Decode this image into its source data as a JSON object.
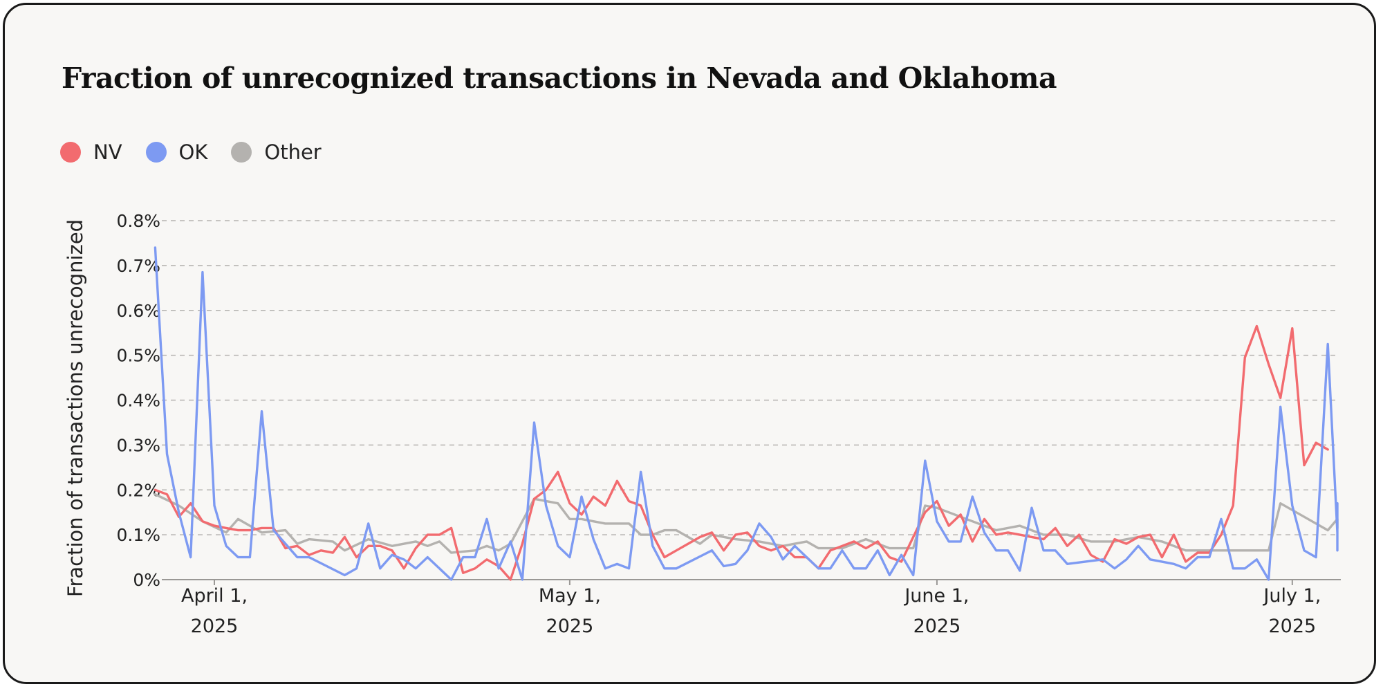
{
  "title": "Fraction of unrecognized transactions in Nevada and Oklahoma",
  "colors": {
    "NV": "#f26b6f",
    "OK": "#7d9af2",
    "Other": "#b4b2af",
    "grid": "#b5b3b0",
    "axis": "#9a9895",
    "text": "#222222"
  },
  "legend": [
    {
      "name": "NV",
      "color": "#f26b6f"
    },
    {
      "name": "OK",
      "color": "#7d9af2"
    },
    {
      "name": "Other",
      "color": "#b4b2af"
    }
  ],
  "chart_data": {
    "type": "line",
    "title": "Fraction of unrecognized transactions in Nevada and Oklahoma",
    "ylabel": "Fraction of transactions unrecognized",
    "xlabel": "",
    "ylim": [
      0,
      0.8
    ],
    "y_unit": "%",
    "yticks": [
      0,
      0.1,
      0.2,
      0.3,
      0.4,
      0.5,
      0.6,
      0.7,
      0.8
    ],
    "ytick_labels": [
      "0%",
      "0.1%",
      "0.2%",
      "0.3%",
      "0.4%",
      "0.5%",
      "0.6%",
      "0.7%",
      "0.8%"
    ],
    "x_start": "2025-03-27",
    "x_end": "2025-07-05",
    "xticks": [
      {
        "date": "2025-04-01",
        "label": [
          "April 1,",
          "2025"
        ]
      },
      {
        "date": "2025-05-01",
        "label": [
          "May 1,",
          "2025"
        ]
      },
      {
        "date": "2025-06-01",
        "label": [
          "June 1,",
          "2025"
        ]
      },
      {
        "date": "2025-07-01",
        "label": [
          "July 1,",
          "2025"
        ]
      }
    ],
    "grid": true,
    "legend_position": "top-left",
    "series": [
      {
        "name": "NV",
        "color": "#f26b6f",
        "points": [
          [
            "2025-03-27",
            0.2
          ],
          [
            "2025-03-28",
            0.19
          ],
          [
            "2025-03-29",
            0.14
          ],
          [
            "2025-03-30",
            0.17
          ],
          [
            "2025-03-31",
            0.13
          ],
          [
            "2025-04-01",
            0.12
          ],
          [
            "2025-04-02",
            0.115
          ],
          [
            "2025-04-03",
            0.11
          ],
          [
            "2025-04-04",
            0.11
          ],
          [
            "2025-04-05",
            0.115
          ],
          [
            "2025-04-06",
            0.115
          ],
          [
            "2025-04-07",
            0.07
          ],
          [
            "2025-04-08",
            0.075
          ],
          [
            "2025-04-09",
            0.055
          ],
          [
            "2025-04-10",
            0.065
          ],
          [
            "2025-04-11",
            0.06
          ],
          [
            "2025-04-12",
            0.095
          ],
          [
            "2025-04-13",
            0.05
          ],
          [
            "2025-04-14",
            0.075
          ],
          [
            "2025-04-15",
            0.075
          ],
          [
            "2025-04-16",
            0.065
          ],
          [
            "2025-04-17",
            0.025
          ],
          [
            "2025-04-18",
            0.07
          ],
          [
            "2025-04-19",
            0.1
          ],
          [
            "2025-04-20",
            0.1
          ],
          [
            "2025-04-21",
            0.115
          ],
          [
            "2025-04-22",
            0.015
          ],
          [
            "2025-04-23",
            0.025
          ],
          [
            "2025-04-24",
            0.045
          ],
          [
            "2025-04-25",
            0.03
          ],
          [
            "2025-04-26",
            0.0
          ],
          [
            "2025-04-27",
            0.08
          ],
          [
            "2025-04-28",
            0.18
          ],
          [
            "2025-04-29",
            0.2
          ],
          [
            "2025-04-30",
            0.24
          ],
          [
            "2025-05-01",
            0.17
          ],
          [
            "2025-05-02",
            0.145
          ],
          [
            "2025-05-03",
            0.185
          ],
          [
            "2025-05-04",
            0.165
          ],
          [
            "2025-05-05",
            0.22
          ],
          [
            "2025-05-06",
            0.175
          ],
          [
            "2025-05-07",
            0.165
          ],
          [
            "2025-05-08",
            0.1
          ],
          [
            "2025-05-09",
            0.05
          ],
          [
            "2025-05-10",
            0.065
          ],
          [
            "2025-05-11",
            0.08
          ],
          [
            "2025-05-12",
            0.095
          ],
          [
            "2025-05-13",
            0.105
          ],
          [
            "2025-05-14",
            0.065
          ],
          [
            "2025-05-15",
            0.1
          ],
          [
            "2025-05-16",
            0.105
          ],
          [
            "2025-05-17",
            0.075
          ],
          [
            "2025-05-18",
            0.065
          ],
          [
            "2025-05-19",
            0.075
          ],
          [
            "2025-05-20",
            0.05
          ],
          [
            "2025-05-21",
            0.05
          ],
          [
            "2025-05-22",
            0.025
          ],
          [
            "2025-05-23",
            0.065
          ],
          [
            "2025-05-24",
            0.075
          ],
          [
            "2025-05-25",
            0.085
          ],
          [
            "2025-05-26",
            0.07
          ],
          [
            "2025-05-27",
            0.085
          ],
          [
            "2025-05-28",
            0.05
          ],
          [
            "2025-05-29",
            0.04
          ],
          [
            "2025-05-30",
            0.095
          ],
          [
            "2025-05-31",
            0.15
          ],
          [
            "2025-06-01",
            0.175
          ],
          [
            "2025-06-02",
            0.12
          ],
          [
            "2025-06-03",
            0.145
          ],
          [
            "2025-06-04",
            0.085
          ],
          [
            "2025-06-05",
            0.135
          ],
          [
            "2025-06-06",
            0.1
          ],
          [
            "2025-06-07",
            0.105
          ],
          [
            "2025-06-08",
            0.1
          ],
          [
            "2025-06-09",
            0.095
          ],
          [
            "2025-06-10",
            0.09
          ],
          [
            "2025-06-11",
            0.115
          ],
          [
            "2025-06-12",
            0.075
          ],
          [
            "2025-06-13",
            0.1
          ],
          [
            "2025-06-14",
            0.055
          ],
          [
            "2025-06-15",
            0.04
          ],
          [
            "2025-06-16",
            0.09
          ],
          [
            "2025-06-17",
            0.08
          ],
          [
            "2025-06-18",
            0.095
          ],
          [
            "2025-06-19",
            0.1
          ],
          [
            "2025-06-20",
            0.05
          ],
          [
            "2025-06-21",
            0.1
          ],
          [
            "2025-06-22",
            0.04
          ],
          [
            "2025-06-23",
            0.06
          ],
          [
            "2025-06-24",
            0.06
          ],
          [
            "2025-06-25",
            0.1
          ],
          [
            "2025-06-26",
            0.165
          ],
          [
            "2025-06-27",
            0.495
          ],
          [
            "2025-06-28",
            0.565
          ],
          [
            "2025-06-29",
            0.48
          ],
          [
            "2025-06-30",
            0.405
          ],
          [
            "2025-07-01",
            0.56
          ],
          [
            "2025-07-02",
            0.255
          ],
          [
            "2025-07-03",
            0.305
          ],
          [
            "2025-07-04",
            0.29
          ]
        ]
      },
      {
        "name": "OK",
        "color": "#7d9af2",
        "points": [
          [
            "2025-03-27",
            0.74
          ],
          [
            "2025-03-28",
            0.28
          ],
          [
            "2025-03-29",
            0.15
          ],
          [
            "2025-03-30",
            0.05
          ],
          [
            "2025-03-31",
            0.685
          ],
          [
            "2025-04-01",
            0.165
          ],
          [
            "2025-04-02",
            0.075
          ],
          [
            "2025-04-03",
            0.05
          ],
          [
            "2025-04-04",
            0.05
          ],
          [
            "2025-04-05",
            0.375
          ],
          [
            "2025-04-06",
            0.11
          ],
          [
            "2025-04-07",
            0.08
          ],
          [
            "2025-04-08",
            0.05
          ],
          [
            "2025-04-09",
            0.05
          ],
          [
            "2025-04-12",
            0.01
          ],
          [
            "2025-04-13",
            0.025
          ],
          [
            "2025-04-14",
            0.125
          ],
          [
            "2025-04-15",
            0.025
          ],
          [
            "2025-04-16",
            0.055
          ],
          [
            "2025-04-17",
            0.045
          ],
          [
            "2025-04-18",
            0.025
          ],
          [
            "2025-04-19",
            0.05
          ],
          [
            "2025-04-21",
            0.0
          ],
          [
            "2025-04-22",
            0.05
          ],
          [
            "2025-04-23",
            0.05
          ],
          [
            "2025-04-24",
            0.135
          ],
          [
            "2025-04-25",
            0.025
          ],
          [
            "2025-04-26",
            0.085
          ],
          [
            "2025-04-27",
            0.0
          ],
          [
            "2025-04-28",
            0.35
          ],
          [
            "2025-04-29",
            0.165
          ],
          [
            "2025-04-30",
            0.075
          ],
          [
            "2025-05-01",
            0.05
          ],
          [
            "2025-05-02",
            0.185
          ],
          [
            "2025-05-03",
            0.09
          ],
          [
            "2025-05-04",
            0.025
          ],
          [
            "2025-05-05",
            0.035
          ],
          [
            "2025-05-06",
            0.025
          ],
          [
            "2025-05-07",
            0.24
          ],
          [
            "2025-05-08",
            0.075
          ],
          [
            "2025-05-09",
            0.025
          ],
          [
            "2025-05-10",
            0.025
          ],
          [
            "2025-05-13",
            0.065
          ],
          [
            "2025-05-14",
            0.03
          ],
          [
            "2025-05-15",
            0.035
          ],
          [
            "2025-05-16",
            0.065
          ],
          [
            "2025-05-17",
            0.125
          ],
          [
            "2025-05-18",
            0.095
          ],
          [
            "2025-05-19",
            0.045
          ],
          [
            "2025-05-20",
            0.075
          ],
          [
            "2025-05-21",
            0.05
          ],
          [
            "2025-05-22",
            0.025
          ],
          [
            "2025-05-23",
            0.025
          ],
          [
            "2025-05-24",
            0.065
          ],
          [
            "2025-05-25",
            0.025
          ],
          [
            "2025-05-26",
            0.025
          ],
          [
            "2025-05-27",
            0.065
          ],
          [
            "2025-05-28",
            0.01
          ],
          [
            "2025-05-29",
            0.055
          ],
          [
            "2025-05-30",
            0.01
          ],
          [
            "2025-05-31",
            0.265
          ],
          [
            "2025-06-01",
            0.13
          ],
          [
            "2025-06-02",
            0.085
          ],
          [
            "2025-06-03",
            0.085
          ],
          [
            "2025-06-04",
            0.185
          ],
          [
            "2025-06-05",
            0.105
          ],
          [
            "2025-06-06",
            0.065
          ],
          [
            "2025-06-07",
            0.065
          ],
          [
            "2025-06-08",
            0.02
          ],
          [
            "2025-06-09",
            0.16
          ],
          [
            "2025-06-10",
            0.065
          ],
          [
            "2025-06-11",
            0.065
          ],
          [
            "2025-06-12",
            0.035
          ],
          [
            "2025-06-15",
            0.045
          ],
          [
            "2025-06-16",
            0.025
          ],
          [
            "2025-06-17",
            0.045
          ],
          [
            "2025-06-18",
            0.075
          ],
          [
            "2025-06-19",
            0.045
          ],
          [
            "2025-06-21",
            0.035
          ],
          [
            "2025-06-22",
            0.025
          ],
          [
            "2025-06-23",
            0.05
          ],
          [
            "2025-06-24",
            0.05
          ],
          [
            "2025-06-25",
            0.135
          ],
          [
            "2025-06-26",
            0.025
          ],
          [
            "2025-06-27",
            0.025
          ],
          [
            "2025-06-28",
            0.045
          ],
          [
            "2025-06-29",
            0.0
          ],
          [
            "2025-06-30",
            0.385
          ],
          [
            "2025-07-01",
            0.165
          ],
          [
            "2025-07-02",
            0.065
          ],
          [
            "2025-07-03",
            0.05
          ],
          [
            "2025-07-04",
            0.525
          ],
          [
            "2025-07-05",
            0.105
          ],
          [
            "2025-07-06",
            0.065
          ],
          [
            "2025-07-07",
            0.17
          ]
        ]
      },
      {
        "name": "Other",
        "color": "#b4b2af",
        "points": [
          [
            "2025-03-27",
            0.19
          ],
          [
            "2025-03-29",
            0.165
          ],
          [
            "2025-03-31",
            0.13
          ],
          [
            "2025-04-02",
            0.105
          ],
          [
            "2025-04-03",
            0.135
          ],
          [
            "2025-04-05",
            0.105
          ],
          [
            "2025-04-07",
            0.11
          ],
          [
            "2025-04-08",
            0.08
          ],
          [
            "2025-04-09",
            0.09
          ],
          [
            "2025-04-11",
            0.085
          ],
          [
            "2025-04-12",
            0.065
          ],
          [
            "2025-04-14",
            0.09
          ],
          [
            "2025-04-16",
            0.075
          ],
          [
            "2025-04-18",
            0.085
          ],
          [
            "2025-04-19",
            0.075
          ],
          [
            "2025-04-20",
            0.085
          ],
          [
            "2025-04-21",
            0.06
          ],
          [
            "2025-04-23",
            0.065
          ],
          [
            "2025-04-24",
            0.075
          ],
          [
            "2025-04-25",
            0.065
          ],
          [
            "2025-04-26",
            0.08
          ],
          [
            "2025-04-28",
            0.18
          ],
          [
            "2025-04-30",
            0.17
          ],
          [
            "2025-05-01",
            0.135
          ],
          [
            "2025-05-02",
            0.135
          ],
          [
            "2025-05-04",
            0.125
          ],
          [
            "2025-05-06",
            0.125
          ],
          [
            "2025-05-07",
            0.1
          ],
          [
            "2025-05-08",
            0.1
          ],
          [
            "2025-05-09",
            0.11
          ],
          [
            "2025-05-10",
            0.11
          ],
          [
            "2025-05-12",
            0.08
          ],
          [
            "2025-05-13",
            0.1
          ],
          [
            "2025-05-15",
            0.09
          ],
          [
            "2025-05-17",
            0.085
          ],
          [
            "2025-05-19",
            0.075
          ],
          [
            "2025-05-21",
            0.085
          ],
          [
            "2025-05-22",
            0.07
          ],
          [
            "2025-05-24",
            0.07
          ],
          [
            "2025-05-26",
            0.09
          ],
          [
            "2025-05-28",
            0.07
          ],
          [
            "2025-05-30",
            0.07
          ],
          [
            "2025-05-31",
            0.165
          ],
          [
            "2025-06-01",
            0.16
          ],
          [
            "2025-06-02",
            0.15
          ],
          [
            "2025-06-04",
            0.13
          ],
          [
            "2025-06-06",
            0.11
          ],
          [
            "2025-06-08",
            0.12
          ],
          [
            "2025-06-10",
            0.1
          ],
          [
            "2025-06-12",
            0.1
          ],
          [
            "2025-06-14",
            0.085
          ],
          [
            "2025-06-16",
            0.085
          ],
          [
            "2025-06-18",
            0.095
          ],
          [
            "2025-06-20",
            0.085
          ],
          [
            "2025-06-22",
            0.065
          ],
          [
            "2025-06-25",
            0.065
          ],
          [
            "2025-06-27",
            0.065
          ],
          [
            "2025-06-29",
            0.065
          ],
          [
            "2025-06-30",
            0.17
          ],
          [
            "2025-07-02",
            0.14
          ],
          [
            "2025-07-04",
            0.11
          ],
          [
            "2025-07-05",
            0.135
          ],
          [
            "2025-07-06",
            0.115
          ],
          [
            "2025-07-08",
            0.13
          ],
          [
            "2025-07-09",
            0.13
          ]
        ]
      }
    ]
  }
}
